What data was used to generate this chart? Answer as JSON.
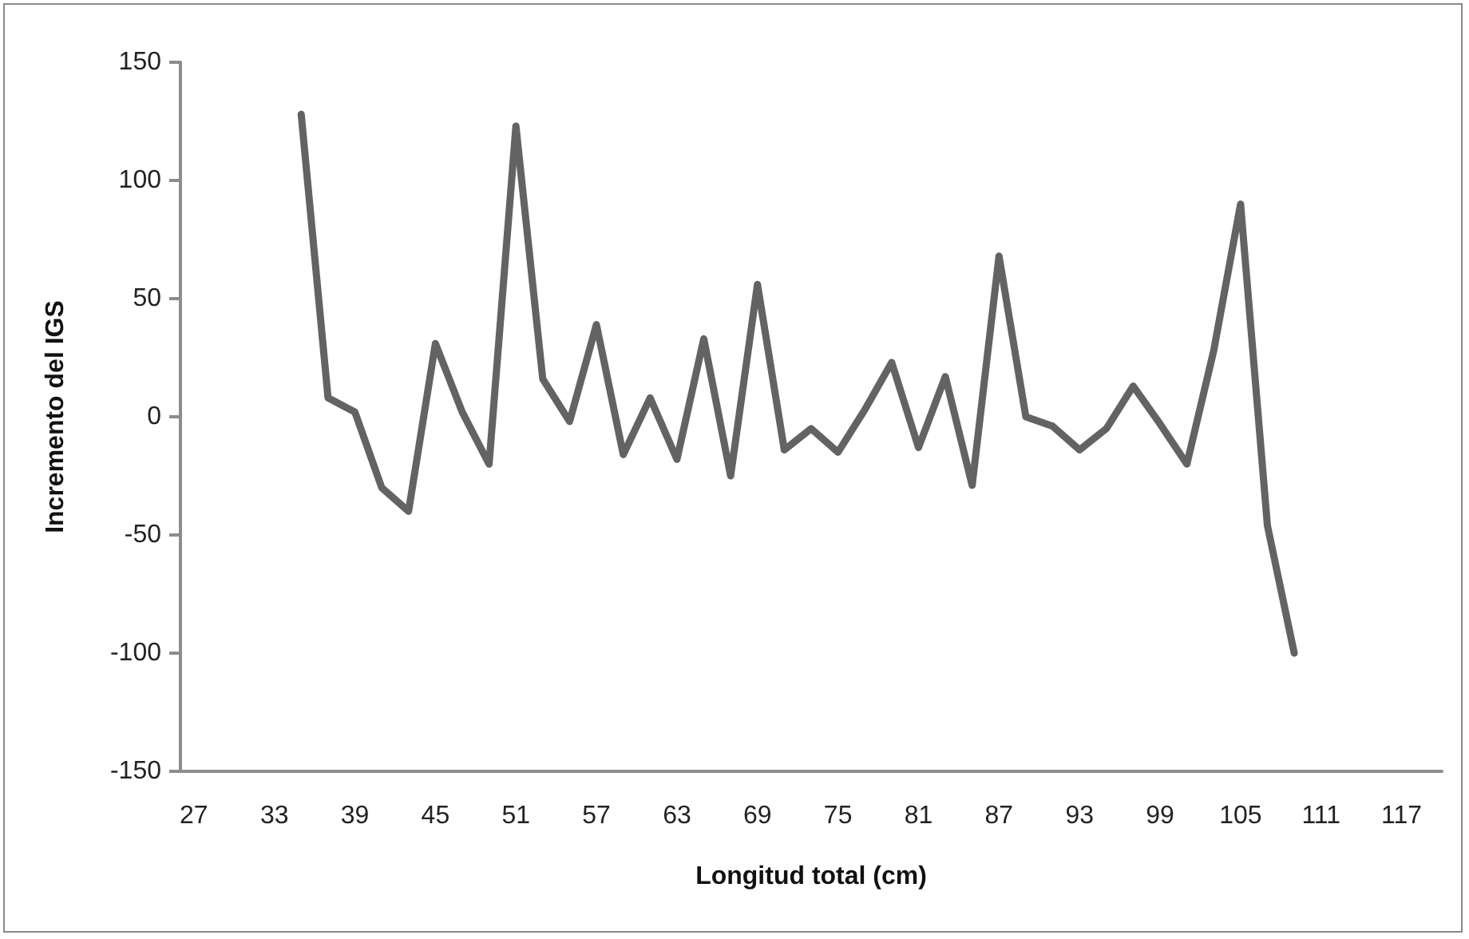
{
  "chart_data": {
    "type": "line",
    "xlabel": "Longitud total (cm)",
    "ylabel": "Incremento del IGS",
    "categories": [
      "27",
      null,
      null,
      "33",
      null,
      null,
      "39",
      null,
      null,
      "45",
      null,
      null,
      "51",
      null,
      null,
      "57",
      null,
      null,
      "63",
      null,
      null,
      "69",
      null,
      null,
      "75",
      null,
      null,
      "81",
      null,
      null,
      "87",
      null,
      null,
      "93",
      null,
      null,
      "99",
      null,
      null,
      "105",
      null,
      null,
      "111",
      null,
      null,
      "117",
      null
    ],
    "series": [
      {
        "color": "#636363",
        "values": [
          null,
          null,
          null,
          null,
          128,
          8,
          2,
          -30,
          -40,
          31,
          2,
          -20,
          123,
          16,
          -2,
          39,
          -16,
          8,
          -18,
          33,
          -25,
          56,
          -14,
          -5,
          -15,
          3,
          23,
          -13,
          17,
          -29,
          68,
          0,
          -4,
          -14,
          -5,
          13,
          -3,
          -20,
          28,
          90,
          -46,
          -100,
          null,
          null,
          null,
          null,
          null
        ]
      }
    ],
    "ylim": [
      -150,
      150
    ],
    "yticks": [
      -150,
      -100,
      -50,
      0,
      50,
      100,
      150
    ],
    "grid": false,
    "marker": "none",
    "line_style": "solid"
  }
}
